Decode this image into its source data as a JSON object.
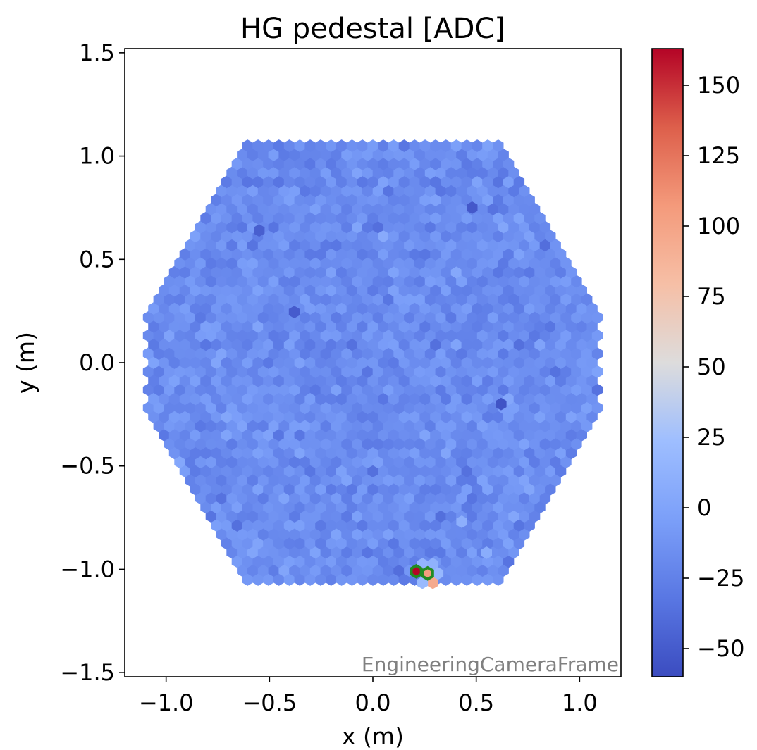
{
  "chart_data": {
    "type": "heatmap",
    "title": "HG pedestal [ADC]",
    "xlabel": "x  (m)",
    "ylabel": "y  (m)",
    "xlim": [
      -1.2,
      1.2
    ],
    "ylim": [
      -1.52,
      1.52
    ],
    "x_ticks": [
      -1.0,
      -0.5,
      0.0,
      0.5,
      1.0
    ],
    "x_tick_labels": [
      "−1.0",
      "−0.5",
      "0.0",
      "0.5",
      "1.0"
    ],
    "y_ticks": [
      1.5,
      1.0,
      0.5,
      0.0,
      -0.5,
      -1.0,
      -1.5
    ],
    "y_tick_labels": [
      "1.5",
      "1.0",
      "0.5",
      "0.0",
      "−0.5",
      "−1.0",
      "−1.5"
    ],
    "camera_frame_label": "EngineeringCameraFrame",
    "colormap": "coolwarm",
    "colorbar": {
      "vmin": -60,
      "vmax": 163,
      "ticks": [
        150,
        125,
        100,
        75,
        50,
        25,
        0,
        -25,
        -50
      ],
      "tick_labels": [
        "150",
        "125",
        "100",
        "75",
        "50",
        "25",
        "0",
        "−25",
        "−50"
      ]
    },
    "camera": {
      "shape": "hexagon",
      "pixel_shape": "hexagon",
      "flat_half_width_m": 1.09,
      "pixel_pitch_m": 0.0505,
      "typical_pixel_value": -17,
      "typical_pixel_spread": 8
    },
    "notable_pixels": [
      {
        "x": 0.21,
        "y": -1.01,
        "value": 163,
        "highlighted": true
      },
      {
        "x": 0.265,
        "y": -1.02,
        "value": 105,
        "highlighted": true
      },
      {
        "x": 0.29,
        "y": -1.065,
        "value": 95,
        "highlighted": false
      },
      {
        "x": 0.24,
        "y": -1.065,
        "value": 20,
        "highlighted": false
      },
      {
        "x": 0.315,
        "y": -1.02,
        "value": 18,
        "highlighted": false
      },
      {
        "x": 0.24,
        "y": -0.975,
        "value": 15,
        "highlighted": false
      },
      {
        "x": 0.29,
        "y": -0.975,
        "value": 12,
        "highlighted": false
      },
      {
        "x": 0.62,
        "y": -0.2,
        "value": -55,
        "highlighted": false
      },
      {
        "x": -0.38,
        "y": 0.245,
        "value": -50,
        "highlighted": false
      },
      {
        "x": 0.43,
        "y": -0.77,
        "value": 10,
        "highlighted": false
      },
      {
        "x": 0.55,
        "y": -0.92,
        "value": 8,
        "highlighted": false
      },
      {
        "x": -0.55,
        "y": 0.64,
        "value": -48,
        "highlighted": false
      },
      {
        "x": 0.48,
        "y": 0.75,
        "value": -52,
        "highlighted": false
      }
    ]
  }
}
